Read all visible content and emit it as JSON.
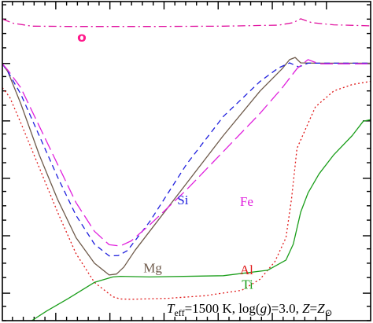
{
  "chart_data": {
    "type": "line",
    "title": "",
    "xlabel": "",
    "ylabel": "",
    "xlim": [
      0,
      100
    ],
    "ylim": [
      0,
      100
    ],
    "grid": false,
    "legend": "inline labels",
    "caption": {
      "T": "T",
      "eff": "eff",
      "mid": "=1500 K, log(",
      "g": "g",
      "mid2": ")=3.0, ",
      "Z": "Z",
      "eq": "=",
      "Z2": "Z",
      "sun": "⊙"
    },
    "marker_o": {
      "label": "o",
      "color": "#ff1a8c"
    },
    "series": [
      {
        "name": "O",
        "color": "#e0109f",
        "dash": "10,4,2,4",
        "x": [
          0,
          3,
          8,
          20,
          40,
          60,
          75,
          79,
          81,
          84,
          90,
          100
        ],
        "y": [
          94.5,
          93.2,
          92.3,
          92.2,
          92.2,
          92.3,
          92.6,
          93.4,
          94.6,
          93.4,
          92.7,
          92.4
        ]
      },
      {
        "name": "Mg",
        "color": "#6e5a4a",
        "dash": "",
        "x": [
          0,
          1.5,
          5,
          10,
          15,
          20,
          25,
          29,
          31,
          33,
          36,
          40,
          50,
          60,
          70,
          76,
          78,
          79.5,
          81,
          85,
          100
        ],
        "y": [
          80.5,
          78,
          68,
          52,
          38,
          26,
          18,
          14.3,
          14.6,
          16.8,
          22,
          28,
          43,
          58,
          72,
          79,
          81.8,
          82.5,
          80.8,
          80.7,
          80.7
        ]
      },
      {
        "name": "Si",
        "color": "#1f1fdd",
        "dash": "7,5",
        "x": [
          0,
          1.5,
          5,
          10,
          15,
          20,
          25,
          29,
          31.5,
          34,
          40,
          50,
          60,
          70,
          75,
          78,
          80.5,
          83,
          100
        ],
        "y": [
          80.5,
          78,
          71,
          58,
          45,
          33,
          24,
          20.3,
          20.4,
          22,
          31,
          49,
          64,
          75,
          79.2,
          80.8,
          79.5,
          80.7,
          80.7
        ]
      },
      {
        "name": "Fe",
        "color": "#e020dd",
        "dash": "16,6",
        "x": [
          0,
          1.5,
          5,
          10,
          15,
          20,
          25,
          29,
          32,
          35,
          40,
          50,
          60,
          70,
          76,
          80,
          83,
          86,
          100
        ],
        "y": [
          80.5,
          78.5,
          73,
          61,
          49,
          37,
          28,
          23.8,
          23.4,
          25,
          30,
          41,
          53,
          65,
          73,
          79,
          81.8,
          80.5,
          80.5
        ]
      },
      {
        "name": "Al",
        "color": "#e01a1a",
        "dash": "2,3",
        "x": [
          0,
          2,
          5,
          10,
          15,
          20,
          25,
          30,
          32,
          35,
          45,
          55,
          65,
          70,
          74,
          77,
          78.5,
          80,
          85,
          90,
          95,
          100
        ],
        "y": [
          73,
          70,
          62,
          48,
          34,
          21,
          12,
          7.5,
          6.8,
          6.7,
          7,
          7.8,
          9.5,
          13,
          18.5,
          26,
          38,
          54,
          67,
          72,
          74,
          75
        ]
      },
      {
        "name": "Ti",
        "color": "#1a9e1a",
        "dash": "",
        "x": [
          8,
          12,
          18,
          25,
          30,
          32,
          40,
          60,
          72,
          77,
          79,
          81,
          83,
          86,
          90,
          95,
          98,
          100
        ],
        "y": [
          0,
          3,
          7,
          12,
          13.7,
          13.9,
          13.7,
          14.1,
          15.8,
          19,
          24,
          34,
          40,
          46,
          52,
          58,
          62.5,
          63
        ]
      }
    ],
    "labels": [
      {
        "text": "Mg",
        "series": "Mg",
        "x": 38.3,
        "y": 15.2
      },
      {
        "text": "Si",
        "series": "Si",
        "x": 47.5,
        "y": 36.5
      },
      {
        "text": "Fe",
        "series": "Fe",
        "x": 64.5,
        "y": 36
      },
      {
        "text": "Al",
        "series": "Al",
        "x": 64.5,
        "y": 14.5
      },
      {
        "text": "Ti",
        "series": "Ti",
        "x": 65,
        "y": 10
      }
    ]
  }
}
